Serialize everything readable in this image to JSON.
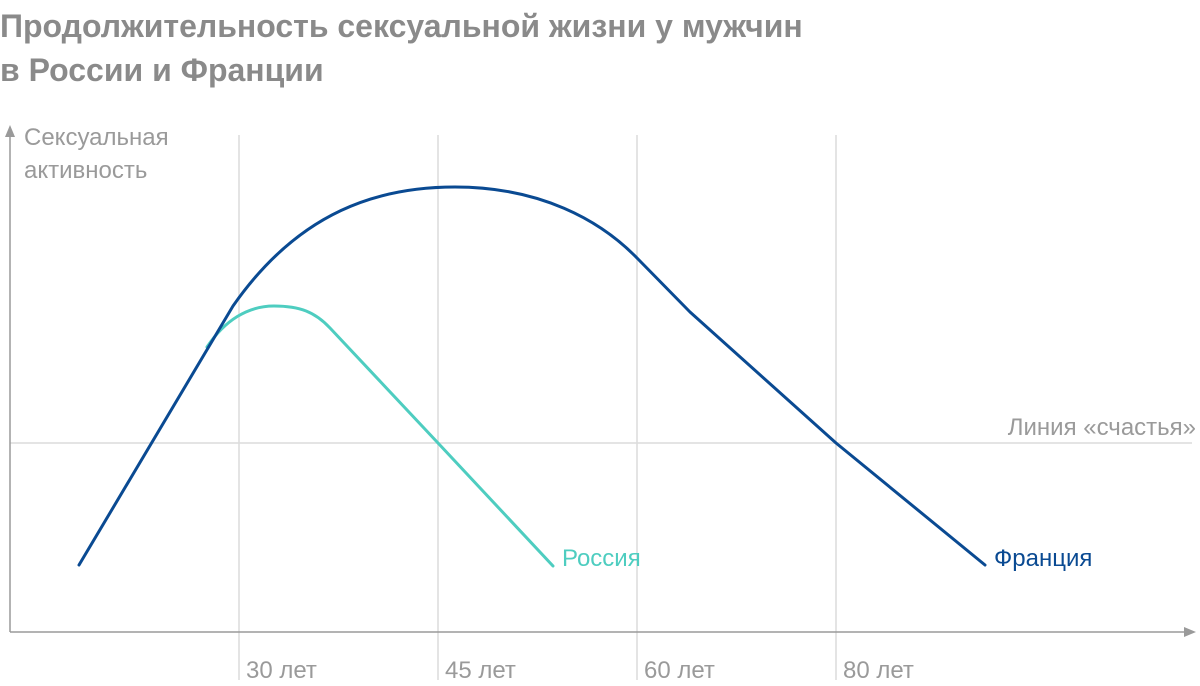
{
  "title_line1": "Продолжительность сексуальной жизни у мужчин",
  "title_line2": "в России и Франции",
  "chart_data": {
    "type": "line",
    "ylabel_line1": "Сексуальная",
    "ylabel_line2": "активность",
    "x_ticks": [
      "30 лет",
      "45 лет",
      "60 лет",
      "80 лет"
    ],
    "reference_line": {
      "label": "Линия «счастья»"
    },
    "grid": "vertical lines at tick positions",
    "colors": {
      "france": "#0a4a92",
      "russia": "#4ecdc0",
      "axis": "#9a9a9a",
      "grid": "#dcdcdc"
    },
    "series": [
      {
        "name": "Франция",
        "color": "#0a4a92"
      },
      {
        "name": "Россия",
        "color": "#4ecdc0"
      }
    ]
  }
}
